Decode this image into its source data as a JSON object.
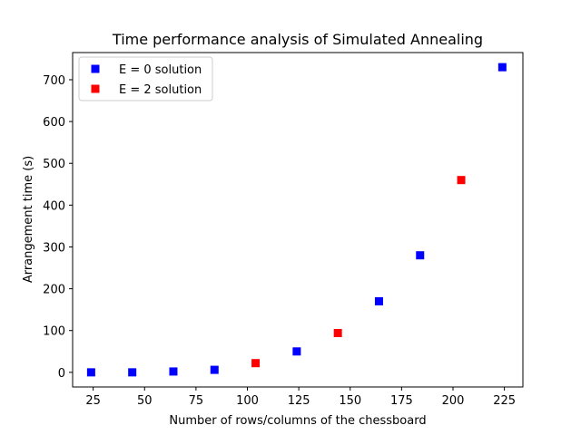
{
  "chart_data": {
    "type": "scatter",
    "title": "Time performance analysis of Simulated Annealing",
    "xlabel": "Number of rows/columns of the chessboard",
    "ylabel": "Arrangement time (s)",
    "xlim": [
      15,
      234
    ],
    "ylim": [
      -35,
      765
    ],
    "xticks": [
      25,
      50,
      75,
      100,
      125,
      150,
      175,
      200,
      225
    ],
    "yticks": [
      0,
      100,
      200,
      300,
      400,
      500,
      600,
      700
    ],
    "grid": false,
    "legend_position": "top-left",
    "series": [
      {
        "name": "E = 0 solution",
        "color": "#0000ff",
        "marker": "square",
        "points": [
          {
            "x": 24,
            "y": 0
          },
          {
            "x": 44,
            "y": 0
          },
          {
            "x": 64,
            "y": 2
          },
          {
            "x": 84,
            "y": 6
          },
          {
            "x": 124,
            "y": 50
          },
          {
            "x": 164,
            "y": 170
          },
          {
            "x": 184,
            "y": 280
          },
          {
            "x": 224,
            "y": 730
          }
        ]
      },
      {
        "name": "E = 2 solution",
        "color": "#ff0000",
        "marker": "square",
        "points": [
          {
            "x": 104,
            "y": 22
          },
          {
            "x": 144,
            "y": 94
          },
          {
            "x": 204,
            "y": 460
          }
        ]
      }
    ]
  }
}
